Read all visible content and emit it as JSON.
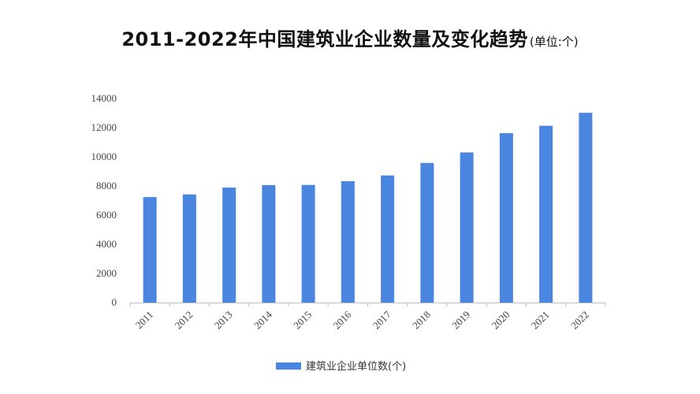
{
  "header": {
    "title": "2011-2022年中国建筑业企业数量及变化趋势",
    "unit": "(单位:个)"
  },
  "chart_data": {
    "type": "bar",
    "title": "2011-2022年中国建筑业企业数量及变化趋势",
    "subtitle": "(单位:个)",
    "categories": [
      "2011",
      "2012",
      "2013",
      "2014",
      "2015",
      "2016",
      "2017",
      "2018",
      "2019",
      "2020",
      "2021",
      "2022"
    ],
    "series": [
      {
        "name": "建筑业企业单位数(个)",
        "color": "#4a86e0",
        "values": [
          7240,
          7420,
          7890,
          8060,
          8070,
          8330,
          8720,
          9580,
          10300,
          11620,
          12130,
          13020
        ]
      }
    ],
    "ylim": [
      0,
      14000
    ],
    "yticks": [
      0,
      2000,
      4000,
      6000,
      8000,
      10000,
      12000,
      14000
    ],
    "grid": false,
    "legend": "bottom"
  }
}
